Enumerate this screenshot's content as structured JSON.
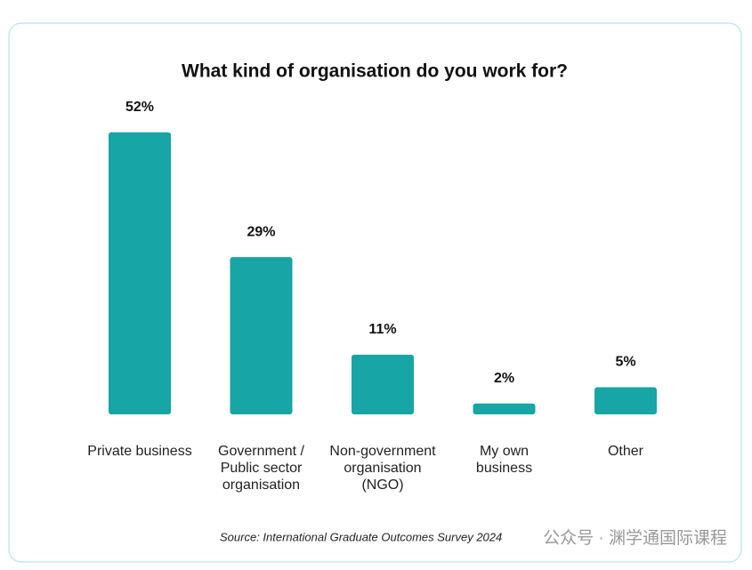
{
  "chart_data": {
    "type": "bar",
    "title": "What kind of organisation do you work for?",
    "categories": [
      "Private business",
      "Government /\nPublic sector\norganisation",
      "Non-government\norganisation\n(NGO)",
      "My own\nbusiness",
      "Other"
    ],
    "values": [
      52,
      29,
      11,
      2,
      5
    ],
    "value_labels": [
      "52%",
      "29%",
      "11%",
      "2%",
      "5%"
    ],
    "color": "#17a5a5",
    "source": "Source: International Graduate Outcomes Survey 2024",
    "watermark": "公众号 · 渊学通国际课程"
  }
}
